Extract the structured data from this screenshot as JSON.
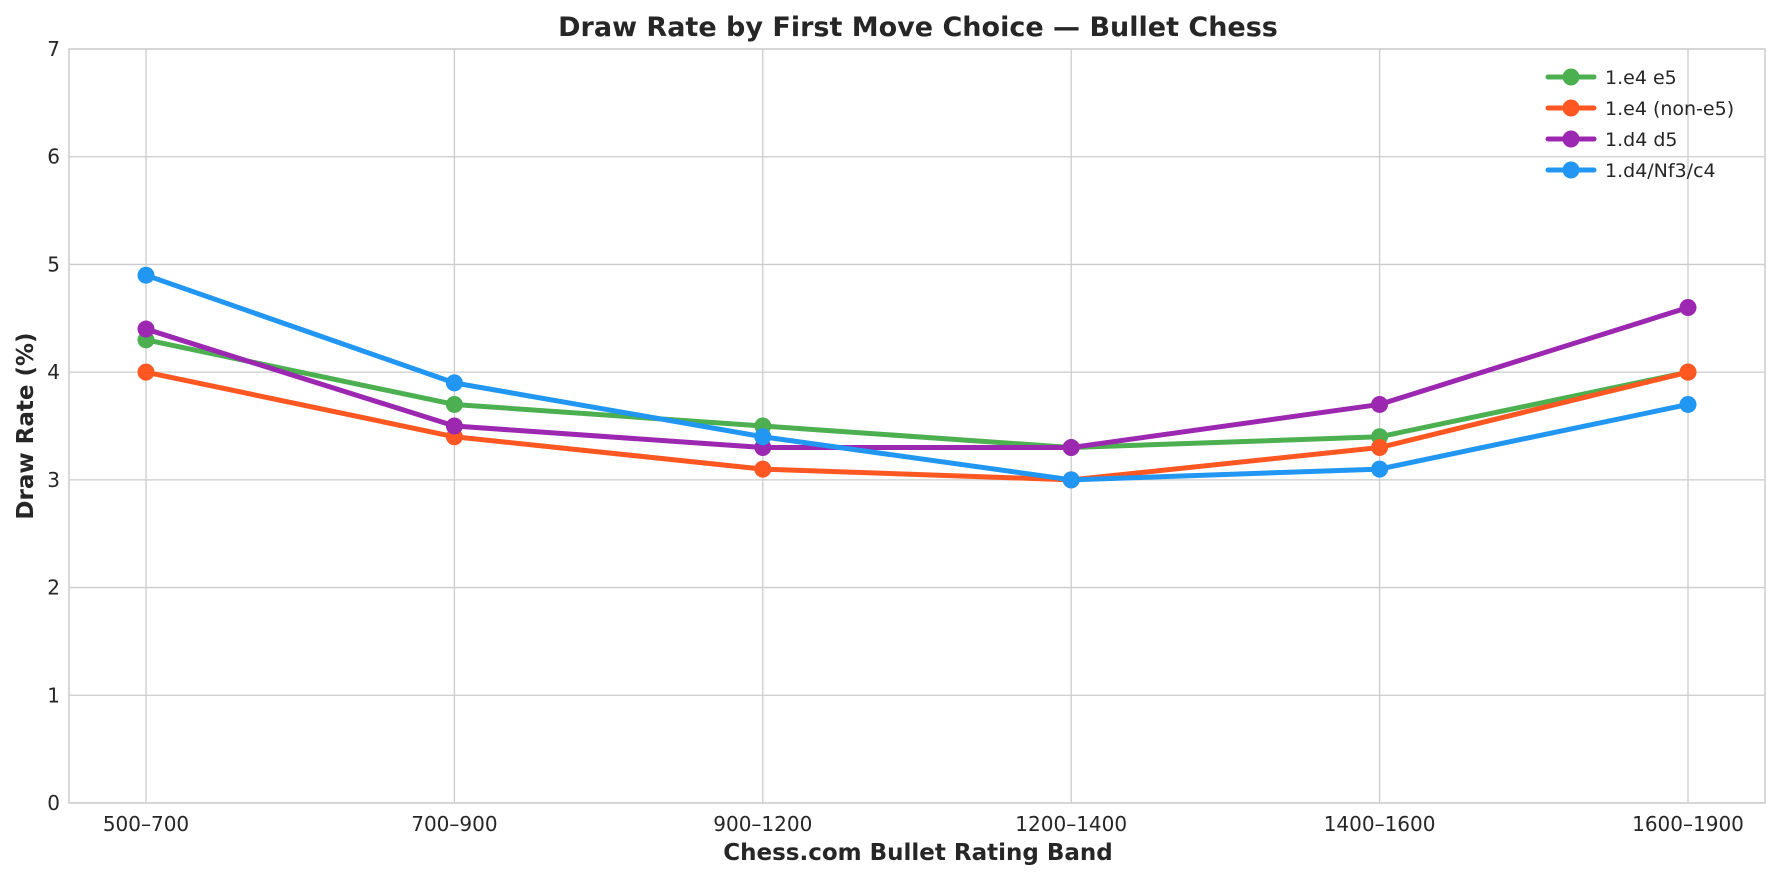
{
  "chart_data": {
    "type": "line",
    "title": "Draw Rate by First Move Choice — Bullet Chess",
    "xlabel": "Chess.com Bullet Rating Band",
    "ylabel": "Draw Rate (%)",
    "categories": [
      "500–700",
      "700–900",
      "900–1200",
      "1200–1400",
      "1400–1600",
      "1600–1900"
    ],
    "ylim": [
      0,
      7
    ],
    "yticks": [
      "0",
      "1",
      "2",
      "3",
      "4",
      "5",
      "6",
      "7"
    ],
    "grid": true,
    "legend_position": "top-right",
    "series": [
      {
        "name": "1.e4 e5",
        "color": "#4caf50",
        "values": [
          4.3,
          3.7,
          3.5,
          3.3,
          3.4,
          4.0
        ]
      },
      {
        "name": "1.e4 (non-e5)",
        "color": "#ff5722",
        "values": [
          4.0,
          3.4,
          3.1,
          3.0,
          3.3,
          4.0
        ]
      },
      {
        "name": "1.d4 d5",
        "color": "#9c27b0",
        "values": [
          4.4,
          3.5,
          3.3,
          3.3,
          3.7,
          4.6
        ]
      },
      {
        "name": "1.d4/Nf3/c4",
        "color": "#2196f3",
        "values": [
          4.9,
          3.9,
          3.4,
          3.0,
          3.1,
          3.7
        ]
      }
    ]
  }
}
